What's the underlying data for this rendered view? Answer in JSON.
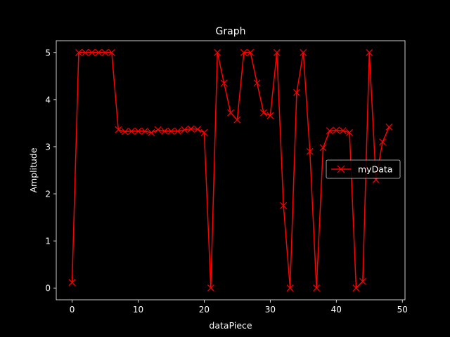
{
  "chart_data": {
    "type": "line",
    "title": "Graph",
    "xlabel": "dataPiece",
    "ylabel": "Amplitude",
    "xlim": [
      -2.4,
      50.4
    ],
    "ylim": [
      -0.25,
      5.25
    ],
    "xticks": [
      0,
      10,
      20,
      30,
      40,
      50
    ],
    "yticks": [
      0,
      1,
      2,
      3,
      4,
      5
    ],
    "grid": false,
    "legend_placement": "center-right",
    "series": [
      {
        "name": "myData",
        "color": "#ff0000",
        "marker": "x",
        "x": [
          0,
          1,
          2,
          3,
          4,
          5,
          6,
          7,
          8,
          9,
          10,
          11,
          12,
          13,
          14,
          15,
          16,
          17,
          18,
          19,
          20,
          21,
          22,
          23,
          24,
          25,
          26,
          27,
          28,
          29,
          30,
          31,
          32,
          33,
          34,
          35,
          36,
          37,
          38,
          39,
          40,
          41,
          42,
          43,
          44,
          45,
          46,
          47,
          48
        ],
        "y": [
          0.12,
          5.0,
          5.0,
          5.0,
          5.0,
          5.0,
          5.0,
          3.36,
          3.32,
          3.33,
          3.33,
          3.33,
          3.3,
          3.36,
          3.33,
          3.33,
          3.33,
          3.36,
          3.38,
          3.37,
          3.3,
          0.0,
          5.0,
          4.35,
          3.72,
          3.57,
          5.0,
          5.0,
          4.35,
          3.72,
          3.66,
          5.0,
          1.75,
          0.0,
          4.15,
          5.0,
          2.9,
          0.0,
          2.98,
          3.34,
          3.35,
          3.34,
          3.3,
          0.0,
          0.14,
          5.0,
          2.3,
          3.1,
          3.42
        ]
      }
    ]
  }
}
